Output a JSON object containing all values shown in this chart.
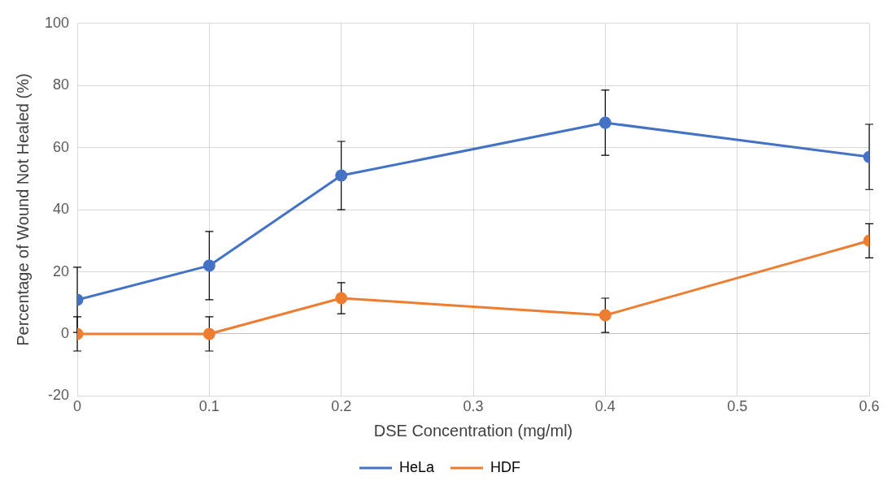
{
  "chart_data": {
    "type": "line",
    "xlabel": "DSE Concentration (mg/ml)",
    "ylabel": "Percentage of Wound Not Healed (%)",
    "x": [
      0,
      0.1,
      0.2,
      0.4,
      0.6
    ],
    "series": [
      {
        "name": "HeLa",
        "color": "#4472c4",
        "values": [
          11,
          22,
          51,
          68,
          57
        ],
        "errors": [
          10.5,
          11,
          11,
          10.5,
          10.5
        ]
      },
      {
        "name": "HDF",
        "color": "#ed7d31",
        "values": [
          0,
          0,
          11.5,
          6,
          30
        ],
        "errors": [
          5.5,
          5.5,
          5,
          5.5,
          5.5
        ]
      }
    ],
    "xlim": [
      0,
      0.6
    ],
    "xticks": [
      0,
      0.1,
      0.2,
      0.3,
      0.4,
      0.5,
      0.6
    ],
    "ylim": [
      -20,
      100
    ],
    "yticks": [
      -20,
      0,
      20,
      40,
      60,
      80,
      100
    ],
    "grid": true,
    "legend": "bottom",
    "marker": "circle",
    "line_style": "solid"
  }
}
